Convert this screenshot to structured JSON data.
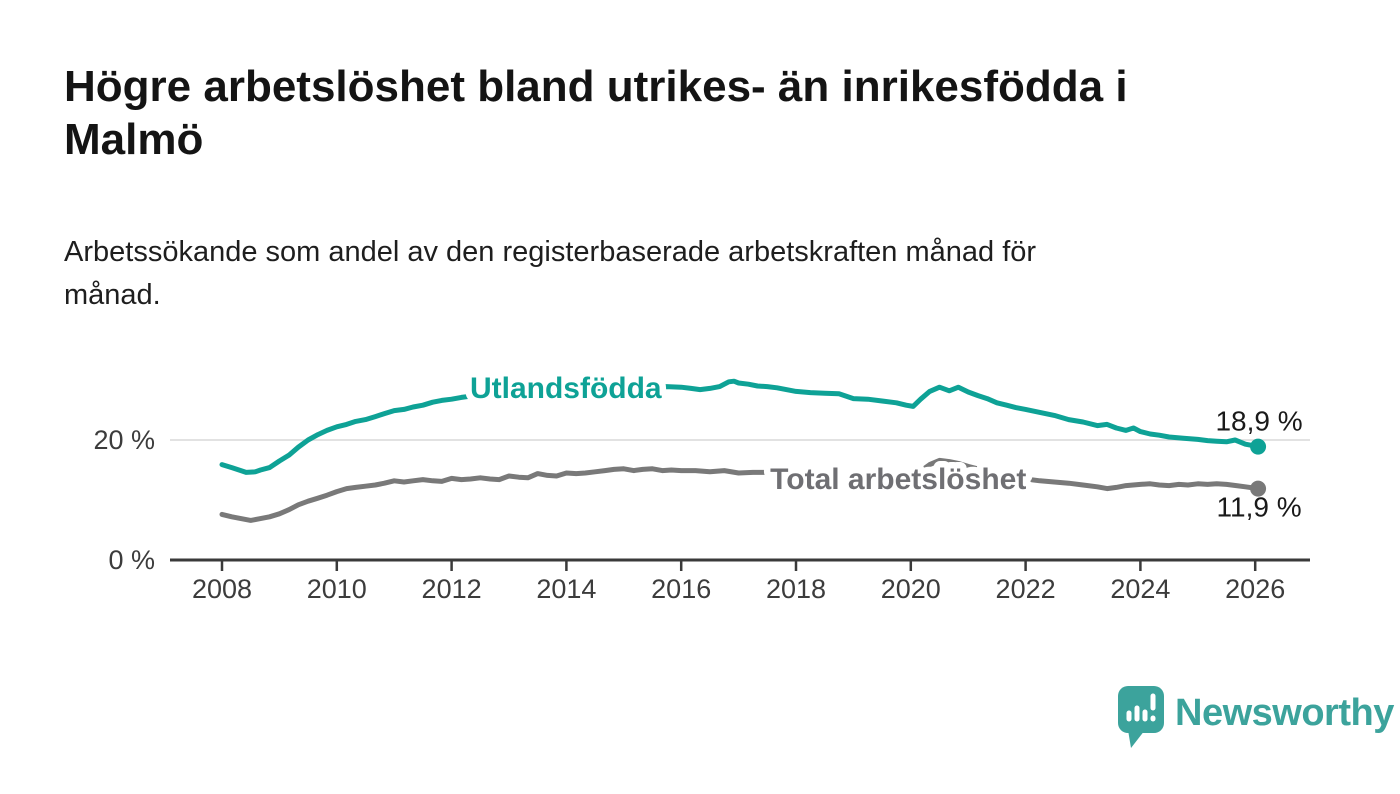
{
  "header": {
    "title_lines": [
      "Högre arbetslöshet bland utrikes- än inrikesfödda i",
      "Malmö"
    ],
    "subtitle_lines": [
      "Arbetssökande som andel av den registerbaserade arbetskraften månad för",
      "månad."
    ]
  },
  "branding": {
    "name": "Newsworthy",
    "logo_icon": "bar-chart-speech-bubble-icon",
    "color": "#3ca39c"
  },
  "chart_data": {
    "type": "line",
    "title": "Högre arbetslöshet bland utrikes- än inrikesfödda i Malmö",
    "subtitle": "Arbetssökande som andel av den registerbaserade arbetskraften månad för månad.",
    "unit": "%",
    "grid": "horizontal-only",
    "gridline_values": [
      20
    ],
    "x_axis": {
      "range": [
        2007.1,
        2026.95
      ],
      "ticks": [
        {
          "year": 2008,
          "label": "2008"
        },
        {
          "year": 2010,
          "label": "2010"
        },
        {
          "year": 2012,
          "label": "2012"
        },
        {
          "year": 2014,
          "label": "2014"
        },
        {
          "year": 2016,
          "label": "2016"
        },
        {
          "year": 2018,
          "label": "2018"
        },
        {
          "year": 2020,
          "label": "2020"
        },
        {
          "year": 2022,
          "label": "2022"
        },
        {
          "year": 2024,
          "label": "2024"
        },
        {
          "year": 2026,
          "label": "2026"
        }
      ]
    },
    "y_axis": {
      "range": [
        0,
        31.5
      ],
      "ticks": [
        {
          "value": 0,
          "label": "0 %"
        },
        {
          "value": 20,
          "label": "20 %"
        }
      ]
    },
    "series": [
      {
        "id": "utlandsfodda",
        "name": "Utlandsfödda",
        "color": "#0ea296",
        "end_value": 18.9,
        "end_label": "18,9 %",
        "end_label_side": "above",
        "label_pos": {
          "year": 2012.32,
          "value_baseline": 27.0
        },
        "points": [
          [
            2008.0,
            15.9
          ],
          [
            2008.17,
            15.4
          ],
          [
            2008.33,
            14.9
          ],
          [
            2008.42,
            14.6
          ],
          [
            2008.58,
            14.7
          ],
          [
            2008.67,
            15.0
          ],
          [
            2008.83,
            15.4
          ],
          [
            2009.0,
            16.5
          ],
          [
            2009.17,
            17.5
          ],
          [
            2009.33,
            18.8
          ],
          [
            2009.5,
            20.0
          ],
          [
            2009.67,
            20.9
          ],
          [
            2009.83,
            21.6
          ],
          [
            2010.0,
            22.2
          ],
          [
            2010.17,
            22.6
          ],
          [
            2010.33,
            23.1
          ],
          [
            2010.5,
            23.4
          ],
          [
            2010.67,
            23.9
          ],
          [
            2010.83,
            24.4
          ],
          [
            2011.0,
            24.9
          ],
          [
            2011.17,
            25.1
          ],
          [
            2011.33,
            25.5
          ],
          [
            2011.5,
            25.8
          ],
          [
            2011.67,
            26.3
          ],
          [
            2011.83,
            26.6
          ],
          [
            2012.0,
            26.8
          ],
          [
            2012.17,
            27.1
          ],
          [
            2012.33,
            27.3
          ],
          [
            2012.5,
            27.6
          ],
          [
            2012.75,
            27.8
          ],
          [
            2013.0,
            28.0
          ],
          [
            2013.25,
            28.2
          ],
          [
            2013.5,
            28.3
          ],
          [
            2013.75,
            28.4
          ],
          [
            2014.0,
            28.5
          ],
          [
            2014.25,
            28.6
          ],
          [
            2014.5,
            28.6
          ],
          [
            2014.75,
            28.7
          ],
          [
            2015.0,
            28.7
          ],
          [
            2015.25,
            28.8
          ],
          [
            2015.5,
            28.8
          ],
          [
            2015.75,
            28.9
          ],
          [
            2016.0,
            28.8
          ],
          [
            2016.17,
            28.6
          ],
          [
            2016.33,
            28.4
          ],
          [
            2016.5,
            28.6
          ],
          [
            2016.67,
            28.9
          ],
          [
            2016.83,
            29.7
          ],
          [
            2016.92,
            29.8
          ],
          [
            2017.0,
            29.5
          ],
          [
            2017.17,
            29.3
          ],
          [
            2017.33,
            29.0
          ],
          [
            2017.5,
            28.9
          ],
          [
            2017.67,
            28.7
          ],
          [
            2017.83,
            28.4
          ],
          [
            2018.0,
            28.1
          ],
          [
            2018.25,
            27.9
          ],
          [
            2018.5,
            27.8
          ],
          [
            2018.75,
            27.7
          ],
          [
            2019.0,
            26.9
          ],
          [
            2019.25,
            26.8
          ],
          [
            2019.5,
            26.5
          ],
          [
            2019.75,
            26.2
          ],
          [
            2019.92,
            25.8
          ],
          [
            2020.04,
            25.6
          ],
          [
            2020.17,
            26.8
          ],
          [
            2020.33,
            28.1
          ],
          [
            2020.5,
            28.8
          ],
          [
            2020.67,
            28.2
          ],
          [
            2020.83,
            28.8
          ],
          [
            2021.0,
            28.0
          ],
          [
            2021.17,
            27.4
          ],
          [
            2021.33,
            26.9
          ],
          [
            2021.5,
            26.2
          ],
          [
            2021.67,
            25.8
          ],
          [
            2021.83,
            25.4
          ],
          [
            2022.0,
            25.1
          ],
          [
            2022.25,
            24.6
          ],
          [
            2022.5,
            24.1
          ],
          [
            2022.75,
            23.4
          ],
          [
            2023.0,
            23.0
          ],
          [
            2023.25,
            22.4
          ],
          [
            2023.42,
            22.6
          ],
          [
            2023.58,
            22.0
          ],
          [
            2023.75,
            21.6
          ],
          [
            2023.88,
            22.0
          ],
          [
            2024.0,
            21.4
          ],
          [
            2024.17,
            21.0
          ],
          [
            2024.33,
            20.8
          ],
          [
            2024.5,
            20.5
          ],
          [
            2024.75,
            20.3
          ],
          [
            2025.0,
            20.1
          ],
          [
            2025.17,
            19.9
          ],
          [
            2025.33,
            19.8
          ],
          [
            2025.5,
            19.7
          ],
          [
            2025.65,
            20.0
          ],
          [
            2025.83,
            19.3
          ],
          [
            2026.05,
            18.9
          ]
        ]
      },
      {
        "id": "total",
        "name": "Total arbetslöshet",
        "color": "#797979",
        "label_color": "#6f6f73",
        "end_value": 11.9,
        "end_label": "11,9 %",
        "end_label_side": "below",
        "label_pos": {
          "year": 2017.55,
          "value_baseline": 11.8
        },
        "points": [
          [
            2008.0,
            7.6
          ],
          [
            2008.17,
            7.2
          ],
          [
            2008.33,
            6.9
          ],
          [
            2008.5,
            6.6
          ],
          [
            2008.67,
            6.9
          ],
          [
            2008.83,
            7.2
          ],
          [
            2009.0,
            7.7
          ],
          [
            2009.17,
            8.4
          ],
          [
            2009.33,
            9.2
          ],
          [
            2009.5,
            9.8
          ],
          [
            2009.67,
            10.3
          ],
          [
            2009.83,
            10.8
          ],
          [
            2010.0,
            11.4
          ],
          [
            2010.17,
            11.9
          ],
          [
            2010.33,
            12.1
          ],
          [
            2010.5,
            12.3
          ],
          [
            2010.67,
            12.5
          ],
          [
            2010.83,
            12.8
          ],
          [
            2011.0,
            13.2
          ],
          [
            2011.17,
            13.0
          ],
          [
            2011.33,
            13.2
          ],
          [
            2011.5,
            13.4
          ],
          [
            2011.67,
            13.2
          ],
          [
            2011.83,
            13.1
          ],
          [
            2012.0,
            13.6
          ],
          [
            2012.17,
            13.4
          ],
          [
            2012.33,
            13.5
          ],
          [
            2012.5,
            13.7
          ],
          [
            2012.67,
            13.5
          ],
          [
            2012.83,
            13.4
          ],
          [
            2013.0,
            14.0
          ],
          [
            2013.17,
            13.8
          ],
          [
            2013.33,
            13.7
          ],
          [
            2013.5,
            14.4
          ],
          [
            2013.67,
            14.1
          ],
          [
            2013.83,
            14.0
          ],
          [
            2014.0,
            14.5
          ],
          [
            2014.17,
            14.4
          ],
          [
            2014.33,
            14.5
          ],
          [
            2014.5,
            14.7
          ],
          [
            2014.67,
            14.9
          ],
          [
            2014.83,
            15.1
          ],
          [
            2015.0,
            15.2
          ],
          [
            2015.17,
            14.9
          ],
          [
            2015.33,
            15.1
          ],
          [
            2015.5,
            15.2
          ],
          [
            2015.67,
            14.9
          ],
          [
            2015.83,
            15.0
          ],
          [
            2016.0,
            14.9
          ],
          [
            2016.25,
            14.9
          ],
          [
            2016.5,
            14.7
          ],
          [
            2016.75,
            14.9
          ],
          [
            2017.0,
            14.5
          ],
          [
            2017.25,
            14.6
          ],
          [
            2017.5,
            14.6
          ],
          [
            2017.75,
            14.2
          ],
          [
            2018.0,
            14.0
          ],
          [
            2018.33,
            13.8
          ],
          [
            2018.67,
            13.7
          ],
          [
            2019.0,
            13.7
          ],
          [
            2019.33,
            13.6
          ],
          [
            2019.67,
            13.6
          ],
          [
            2020.0,
            13.8
          ],
          [
            2020.17,
            14.8
          ],
          [
            2020.33,
            15.9
          ],
          [
            2020.5,
            16.6
          ],
          [
            2020.67,
            16.4
          ],
          [
            2020.83,
            16.1
          ],
          [
            2021.0,
            15.6
          ],
          [
            2021.25,
            15.0
          ],
          [
            2021.5,
            14.5
          ],
          [
            2021.75,
            14.0
          ],
          [
            2022.0,
            13.5
          ],
          [
            2022.25,
            13.2
          ],
          [
            2022.5,
            13.0
          ],
          [
            2022.75,
            12.8
          ],
          [
            2023.0,
            12.5
          ],
          [
            2023.25,
            12.2
          ],
          [
            2023.42,
            11.9
          ],
          [
            2023.58,
            12.1
          ],
          [
            2023.75,
            12.4
          ],
          [
            2024.0,
            12.6
          ],
          [
            2024.17,
            12.7
          ],
          [
            2024.33,
            12.5
          ],
          [
            2024.5,
            12.4
          ],
          [
            2024.67,
            12.6
          ],
          [
            2024.83,
            12.5
          ],
          [
            2025.0,
            12.7
          ],
          [
            2025.17,
            12.6
          ],
          [
            2025.33,
            12.7
          ],
          [
            2025.5,
            12.6
          ],
          [
            2025.67,
            12.4
          ],
          [
            2025.83,
            12.2
          ],
          [
            2026.05,
            11.9
          ]
        ]
      }
    ],
    "colors": {
      "axis": "#3a3a3a",
      "gridline": "#d8d8d8",
      "tick_label": "#3c3c3c",
      "value_label": "#1a1a1a"
    }
  }
}
